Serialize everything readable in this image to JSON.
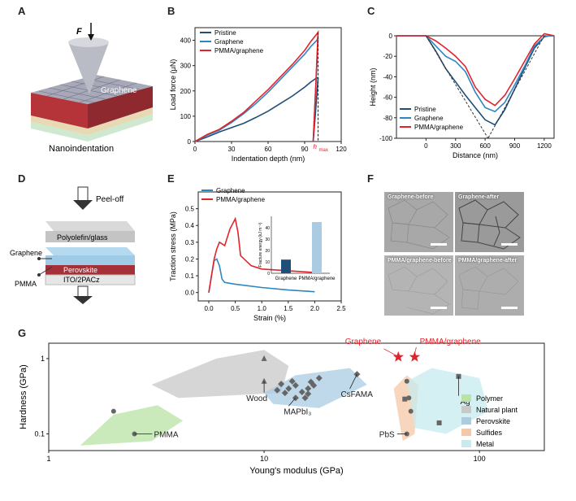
{
  "panel_labels": [
    "A",
    "B",
    "C",
    "D",
    "E",
    "F",
    "G"
  ],
  "colors": {
    "pristine": "#1f4e79",
    "graphene": "#2e86c1",
    "pmma": "#e3232c",
    "dark_bar": "#1f4e79",
    "light_bar": "#a9cce3"
  },
  "panel_a": {
    "force_label": "F",
    "graphene_label": "Graphene",
    "caption": "Nanoindentation"
  },
  "panel_d": {
    "peel_label": "Peel-off",
    "layer_glass": "Polyolefin/glass",
    "layer_perovskite": "Perovskite",
    "layer_ito": "ITO/2PACz",
    "label_graphene": "Graphene",
    "label_pmma": "PMMA"
  },
  "panel_f": {
    "images": [
      "Graphene-before",
      "Graphene-after",
      "PMMA/graphene-before",
      "PMMA/graphene-after"
    ]
  },
  "chart_data": [
    {
      "id": "B",
      "type": "line",
      "xlabel": "Indentation depth (nm)",
      "ylabel": "Load force (μN)",
      "xlim": [
        0,
        120
      ],
      "ylim": [
        0,
        450
      ],
      "xticks": [
        "0",
        "30",
        "60",
        "90",
        "120"
      ],
      "yticks": [
        "0",
        "100",
        "200",
        "300",
        "400"
      ],
      "marker_label": "h",
      "marker_sub": "max",
      "marker_x": 101,
      "series": [
        {
          "name": "Pristine",
          "color": "#1f4e79",
          "x": [
            0,
            10,
            20,
            30,
            40,
            50,
            60,
            70,
            80,
            90,
            95,
            100,
            101,
            99,
            97
          ],
          "y": [
            0,
            18,
            38,
            55,
            72,
            95,
            120,
            150,
            180,
            215,
            235,
            252,
            250,
            120,
            0
          ]
        },
        {
          "name": "Graphene",
          "color": "#2e86c1",
          "x": [
            0,
            10,
            20,
            30,
            40,
            50,
            60,
            70,
            80,
            90,
            95,
            100,
            101,
            99,
            97
          ],
          "y": [
            0,
            25,
            45,
            75,
            110,
            150,
            195,
            245,
            295,
            345,
            375,
            400,
            412,
            200,
            0
          ]
        },
        {
          "name": "PMMA/graphene",
          "color": "#e3232c",
          "x": [
            0,
            10,
            20,
            30,
            40,
            50,
            60,
            70,
            80,
            90,
            95,
            100,
            101,
            99,
            97
          ],
          "y": [
            0,
            28,
            48,
            80,
            115,
            160,
            205,
            255,
            305,
            360,
            395,
            425,
            432,
            210,
            0
          ]
        }
      ]
    },
    {
      "id": "C",
      "type": "line",
      "xlabel": "Distance (nm)",
      "ylabel": "Height (nm)",
      "xlim": [
        -300,
        1300
      ],
      "ylim": [
        -100,
        0
      ],
      "xticks": [
        "0",
        "300",
        "600",
        "900",
        "1200"
      ],
      "yticks": [
        "0",
        "-20",
        "-40",
        "-60",
        "-80",
        "-100"
      ],
      "series": [
        {
          "name": "Pristine",
          "color": "#1f4e79",
          "x": [
            -300,
            0,
            100,
            200,
            300,
            400,
            500,
            600,
            700,
            800,
            900,
            1000,
            1100,
            1200,
            1250,
            1300
          ],
          "y": [
            0,
            0,
            -15,
            -32,
            -45,
            -58,
            -70,
            -82,
            -87,
            -72,
            -52,
            -32,
            -12,
            -1,
            0,
            0
          ]
        },
        {
          "name": "Graphene",
          "color": "#2e86c1",
          "x": [
            -300,
            0,
            100,
            200,
            300,
            400,
            500,
            600,
            700,
            800,
            900,
            1000,
            1100,
            1200,
            1250,
            1300
          ],
          "y": [
            0,
            0,
            -10,
            -20,
            -25,
            -35,
            -55,
            -70,
            -74,
            -65,
            -48,
            -30,
            -10,
            -1,
            0,
            0
          ]
        },
        {
          "name": "PMMA/graphene",
          "color": "#e3232c",
          "x": [
            -300,
            0,
            100,
            200,
            300,
            400,
            500,
            600,
            700,
            800,
            900,
            1000,
            1100,
            1200,
            1250,
            1300
          ],
          "y": [
            0,
            0,
            -5,
            -12,
            -20,
            -30,
            -50,
            -62,
            -68,
            -58,
            -42,
            -25,
            -8,
            2,
            1,
            0
          ]
        }
      ]
    },
    {
      "id": "E",
      "type": "line",
      "xlabel": "Strain (%)",
      "ylabel": "Traction stress (MPa)",
      "xlim": [
        -0.2,
        2.5
      ],
      "ylim": [
        -0.05,
        0.6
      ],
      "xticks": [
        "0.0",
        "0.5",
        "1.0",
        "1.5",
        "2.0",
        "2.5"
      ],
      "yticks": [
        "0.0",
        "0.1",
        "0.2",
        "0.3",
        "0.4",
        "0.5"
      ],
      "series": [
        {
          "name": "Graphene",
          "color": "#2e86c1",
          "x": [
            0,
            0.05,
            0.1,
            0.15,
            0.2,
            0.25,
            0.3,
            0.5,
            1.0,
            1.5,
            2.0
          ],
          "y": [
            0,
            0.1,
            0.19,
            0.2,
            0.16,
            0.08,
            0.06,
            0.05,
            0.03,
            0.015,
            0.005
          ]
        },
        {
          "name": "PMMA/graphene",
          "color": "#e3232c",
          "x": [
            0,
            0.05,
            0.1,
            0.15,
            0.2,
            0.3,
            0.4,
            0.5,
            0.55,
            0.6,
            0.8,
            1.0,
            1.5,
            2.0
          ],
          "y": [
            0,
            0.1,
            0.2,
            0.26,
            0.3,
            0.28,
            0.38,
            0.44,
            0.36,
            0.22,
            0.16,
            0.14,
            0.13,
            0.12
          ]
        }
      ],
      "inset": {
        "type": "bar",
        "ylabel": "Fracture energy (kJ m⁻²)",
        "categories": [
          "Graphene",
          "PMMA/graphene"
        ],
        "values": [
          12,
          45
        ],
        "ylim": [
          0,
          50
        ],
        "yticks": [
          "0",
          "10",
          "20",
          "30",
          "40"
        ]
      }
    },
    {
      "id": "G",
      "type": "scatter",
      "xlabel": "Young's modulus (GPa)",
      "ylabel": "Hardness (GPa)",
      "xscale": "log",
      "yscale": "log",
      "xlim": [
        1,
        200
      ],
      "ylim": [
        0.06,
        1.6
      ],
      "xticks": [
        "1",
        "10",
        "100"
      ],
      "yticks": [
        "0.1",
        "1"
      ],
      "legend": [
        "Polymer",
        "Natural plant",
        "Perovskite",
        "Sulfides",
        "Metal"
      ],
      "legend_colors": [
        "#b9e3a5",
        "#c8c8c8",
        "#a9cce3",
        "#f5c8a8",
        "#c7ebee"
      ],
      "points": [
        {
          "label": "PMMA",
          "shape": "circle",
          "x": [
            2.0,
            2.5
          ],
          "y": [
            0.2,
            0.1
          ]
        },
        {
          "label": "Wood",
          "shape": "triangle",
          "x": [
            10,
            10
          ],
          "y": [
            1.0,
            0.5
          ]
        },
        {
          "label": "MAPbI₃",
          "shape": "diamond",
          "x": [
            11.5,
            12,
            12.5,
            13,
            13.5,
            14,
            15,
            15.5,
            16,
            16.5,
            17,
            18,
            14,
            16
          ],
          "y": [
            0.38,
            0.46,
            0.35,
            0.4,
            0.5,
            0.44,
            0.36,
            0.3,
            0.4,
            0.49,
            0.44,
            0.55,
            0.3,
            0.34
          ]
        },
        {
          "label": "CsFAMA",
          "shape": "diamond",
          "x": [
            27
          ],
          "y": [
            0.62
          ]
        },
        {
          "label": "PbS",
          "shape": "circle",
          "x": [
            46,
            47,
            48,
            46
          ],
          "y": [
            0.5,
            0.3,
            0.2,
            0.1
          ]
        },
        {
          "label": "Ag",
          "shape": "square",
          "x": [
            45,
            65,
            80
          ],
          "y": [
            0.29,
            0.14,
            0.58
          ]
        },
        {
          "label": "Graphene",
          "shape": "star",
          "x": [
            42
          ],
          "y": [
            1.05
          ]
        },
        {
          "label": "PMMA/graphene",
          "shape": "star",
          "x": [
            50
          ],
          "y": [
            1.05
          ]
        }
      ],
      "annotations": [
        "Graphene",
        "PMMA/graphene",
        "PMMA",
        "Wood",
        "MAPbI₃",
        "CsFAMA",
        "PbS",
        "Ag"
      ]
    }
  ]
}
